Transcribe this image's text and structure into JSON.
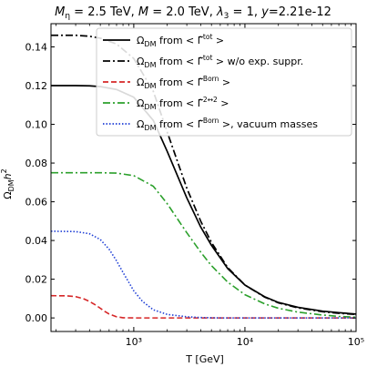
{
  "chart_data": {
    "type": "line",
    "title": "Mη = 2.5 TeV, M = 2.0 TeV, λ3 = 1, y=2.21e-12",
    "xlabel": "T [GeV]",
    "ylabel": "ΩDM h²",
    "xscale": "log",
    "xlim": [
      180,
      100000
    ],
    "ylim": [
      -0.007,
      0.152
    ],
    "x_ticks": [
      {
        "value": 1000,
        "label": "10³"
      },
      {
        "value": 10000,
        "label": "10⁴"
      },
      {
        "value": 100000,
        "label": "10⁵"
      }
    ],
    "y_ticks": [
      {
        "value": 0.0,
        "label": "0.00"
      },
      {
        "value": 0.02,
        "label": "0.02"
      },
      {
        "value": 0.04,
        "label": "0.04"
      },
      {
        "value": 0.06,
        "label": "0.06"
      },
      {
        "value": 0.08,
        "label": "0.08"
      },
      {
        "value": 0.1,
        "label": "0.10"
      },
      {
        "value": 0.12,
        "label": "0.12"
      },
      {
        "value": 0.14,
        "label": "0.14"
      }
    ],
    "legend_position": "top-right",
    "grid": false,
    "series": [
      {
        "name": "ΩDM from <Γtot>",
        "color": "#000000",
        "dash": "solid",
        "points": [
          [
            180,
            0.12
          ],
          [
            300,
            0.12
          ],
          [
            400,
            0.1199
          ],
          [
            500,
            0.1195
          ],
          [
            700,
            0.118
          ],
          [
            1000,
            0.114
          ],
          [
            1500,
            0.102
          ],
          [
            2000,
            0.086
          ],
          [
            3000,
            0.062
          ],
          [
            4000,
            0.047
          ],
          [
            5000,
            0.0375
          ],
          [
            7000,
            0.0255
          ],
          [
            10000,
            0.017
          ],
          [
            15000,
            0.011
          ],
          [
            20000,
            0.008
          ],
          [
            30000,
            0.0055
          ],
          [
            50000,
            0.0035
          ],
          [
            70000,
            0.0027
          ],
          [
            100000,
            0.002
          ]
        ]
      },
      {
        "name": "ΩDM from <Γtot> w/o exp. suppr.",
        "color": "#000000",
        "dash": "dashdot",
        "points": [
          [
            180,
            0.146
          ],
          [
            300,
            0.146
          ],
          [
            400,
            0.1455
          ],
          [
            500,
            0.1445
          ],
          [
            700,
            0.1415
          ],
          [
            1000,
            0.134
          ],
          [
            1500,
            0.117
          ],
          [
            2000,
            0.096
          ],
          [
            3000,
            0.067
          ],
          [
            4000,
            0.05
          ],
          [
            5000,
            0.039
          ],
          [
            7000,
            0.026
          ],
          [
            10000,
            0.017
          ],
          [
            15000,
            0.0108
          ],
          [
            20000,
            0.0078
          ],
          [
            30000,
            0.0052
          ],
          [
            50000,
            0.0032
          ],
          [
            70000,
            0.0024
          ],
          [
            100000,
            0.0018
          ]
        ]
      },
      {
        "name": "ΩDM from <ΓBorn>",
        "color": "#d62728",
        "dash": "dashed",
        "points": [
          [
            180,
            0.0115
          ],
          [
            250,
            0.0114
          ],
          [
            300,
            0.011
          ],
          [
            350,
            0.01
          ],
          [
            400,
            0.0085
          ],
          [
            450,
            0.0068
          ],
          [
            500,
            0.005
          ],
          [
            550,
            0.0033
          ],
          [
            600,
            0.002
          ],
          [
            700,
            0.0006
          ],
          [
            800,
            0.0001
          ],
          [
            1000,
            0.0
          ],
          [
            10000,
            0.0
          ],
          [
            100000,
            0.0
          ]
        ]
      },
      {
        "name": "ΩDM from <Γ2↔2>",
        "color": "#2ca02c",
        "dash": "dashdot",
        "points": [
          [
            180,
            0.075
          ],
          [
            500,
            0.075
          ],
          [
            700,
            0.0748
          ],
          [
            1000,
            0.0735
          ],
          [
            1500,
            0.068
          ],
          [
            2000,
            0.059
          ],
          [
            3000,
            0.044
          ],
          [
            4000,
            0.034
          ],
          [
            5000,
            0.027
          ],
          [
            7000,
            0.0185
          ],
          [
            10000,
            0.012
          ],
          [
            15000,
            0.0073
          ],
          [
            20000,
            0.005
          ],
          [
            30000,
            0.003
          ],
          [
            50000,
            0.0015
          ],
          [
            70000,
            0.0008
          ],
          [
            100000,
            0.0004
          ]
        ]
      },
      {
        "name": "ΩDM from <ΓBorn>, vacuum masses",
        "color": "#1f3fd6",
        "dash": "dotted",
        "points": [
          [
            180,
            0.0448
          ],
          [
            300,
            0.0446
          ],
          [
            400,
            0.0435
          ],
          [
            500,
            0.0405
          ],
          [
            600,
            0.0355
          ],
          [
            700,
            0.0295
          ],
          [
            800,
            0.0235
          ],
          [
            1000,
            0.014
          ],
          [
            1200,
            0.0085
          ],
          [
            1500,
            0.0042
          ],
          [
            2000,
            0.0018
          ],
          [
            3000,
            0.0006
          ],
          [
            4000,
            0.0002
          ],
          [
            6000,
            0.0
          ],
          [
            100000,
            0.0
          ]
        ]
      }
    ]
  },
  "title_parts": {
    "p1": "M",
    "p1_sub": "η",
    "p2": " = 2.5 TeV, ",
    "p3": "M",
    "p4": " = 2.0 TeV, ",
    "p5": "λ",
    "p5_sub": "3",
    "p6": " = 1, ",
    "p7": "y",
    "p8": "=2.21e-12"
  },
  "ylabel_parts": {
    "base": "Ω",
    "sub": "DM",
    "mid": "h",
    "sup": "2"
  },
  "legend": [
    {
      "pre": "Ω",
      "sub": "DM",
      "mid": " from < ",
      "gamma": "Γ̂",
      "sup": "tot",
      "post": " >"
    },
    {
      "pre": "Ω",
      "sub": "DM",
      "mid": " from < ",
      "gamma": "Γ̂",
      "sup": "tot",
      "post": " >  w/o exp. suppr."
    },
    {
      "pre": "Ω",
      "sub": "DM",
      "mid": " from < ",
      "gamma": "Γ̂",
      "sup": "Born",
      "post": " >"
    },
    {
      "pre": "Ω",
      "sub": "DM",
      "mid": " from < ",
      "gamma": "Γ̂",
      "sup": "2↔2",
      "post": " >"
    },
    {
      "pre": "Ω",
      "sub": "DM",
      "mid": " from < ",
      "gamma": "Γ̂",
      "sup": "Born",
      "post": " >, vacuum masses"
    }
  ]
}
